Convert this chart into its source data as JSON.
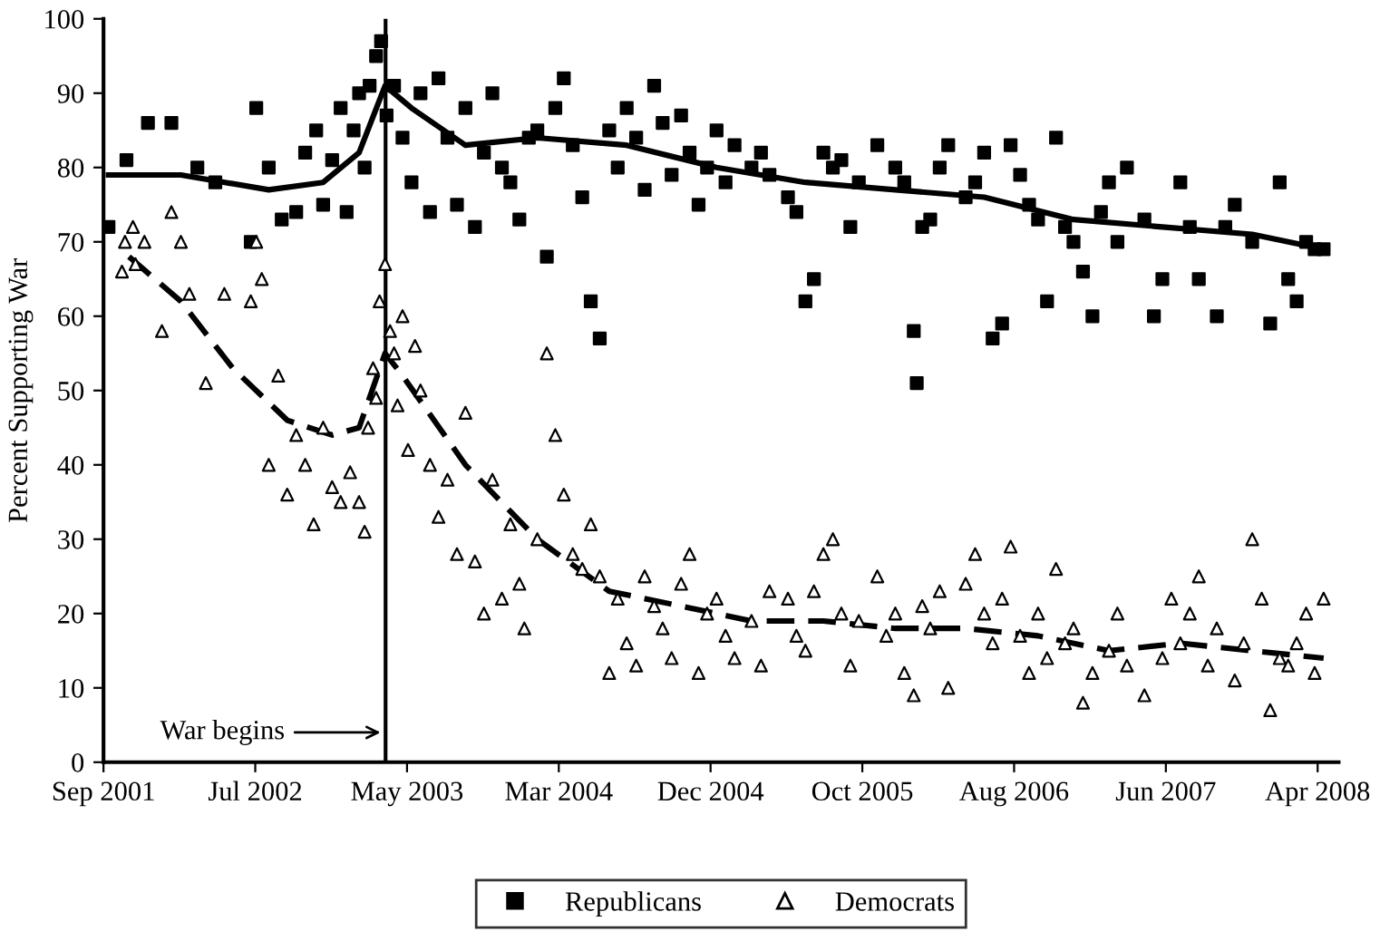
{
  "chart_data": {
    "type": "scatter",
    "ylabel": "Percent Supporting War",
    "xlim": [
      "2001-09-01",
      "2008-06-10"
    ],
    "ylim": [
      0,
      100
    ],
    "yticks": [
      0,
      10,
      20,
      30,
      40,
      50,
      60,
      70,
      80,
      90,
      100
    ],
    "xticks": [
      {
        "value": "2001-09-01",
        "label": "Sep 2001"
      },
      {
        "value": "2002-07-02",
        "label": "Jul 2002"
      },
      {
        "value": "2003-05-02",
        "label": "May 2003"
      },
      {
        "value": "2004-03-01",
        "label": "Mar 2004"
      },
      {
        "value": "2004-12-30",
        "label": "Dec 2004"
      },
      {
        "value": "2005-10-30",
        "label": "Oct 2005"
      },
      {
        "value": "2006-08-30",
        "label": "Aug 2006"
      },
      {
        "value": "2007-06-30",
        "label": "Jun 2007"
      },
      {
        "value": "2008-04-29",
        "label": "Apr 2008"
      }
    ],
    "grid": false,
    "legend": "bottom",
    "ref_lines": [
      {
        "axis": "x",
        "value": "2003-03-20",
        "label": "War begins",
        "color": "#000000"
      }
    ],
    "series": [
      {
        "name": "Republicans",
        "marker": "square",
        "color": "#000000",
        "x": [
          "2001-09-11",
          "2001-10-17",
          "2001-11-29",
          "2002-01-15",
          "2002-03-08",
          "2002-04-13",
          "2002-06-23",
          "2002-07-04",
          "2002-07-29",
          "2002-08-24",
          "2002-09-22",
          "2002-10-10",
          "2002-11-01",
          "2002-11-15",
          "2002-12-03",
          "2002-12-20",
          "2003-01-01",
          "2003-01-15",
          "2003-01-26",
          "2003-02-06",
          "2003-02-16",
          "2003-03-01",
          "2003-03-11",
          "2003-03-22",
          "2003-04-06",
          "2003-04-23",
          "2003-05-11",
          "2003-05-29",
          "2003-06-17",
          "2003-07-04",
          "2003-07-22",
          "2003-08-10",
          "2003-08-27",
          "2003-09-15",
          "2003-10-03",
          "2003-10-20",
          "2003-11-08",
          "2003-11-25",
          "2003-12-13",
          "2004-01-01",
          "2004-01-18",
          "2004-02-06",
          "2004-02-23",
          "2004-03-11",
          "2004-03-29",
          "2004-04-17",
          "2004-05-04",
          "2004-05-22",
          "2004-06-10",
          "2004-06-27",
          "2004-07-15",
          "2004-08-03",
          "2004-08-20",
          "2004-09-08",
          "2004-09-25",
          "2004-10-13",
          "2004-11-01",
          "2004-11-18",
          "2004-12-06",
          "2004-12-23",
          "2005-01-11",
          "2005-01-29",
          "2005-02-16",
          "2005-03-22",
          "2005-04-10",
          "2005-04-27",
          "2005-06-03",
          "2005-06-20",
          "2005-07-08",
          "2005-07-25",
          "2005-08-13",
          "2005-09-01",
          "2005-09-18",
          "2005-10-06",
          "2005-10-23",
          "2005-11-29",
          "2006-01-04",
          "2006-01-22",
          "2006-02-10",
          "2006-02-16",
          "2006-02-27",
          "2006-03-15",
          "2006-04-03",
          "2006-04-20",
          "2006-05-25",
          "2006-06-13",
          "2006-07-01",
          "2006-07-18",
          "2006-08-06",
          "2006-08-23",
          "2006-09-11",
          "2006-09-29",
          "2006-10-17",
          "2006-11-04",
          "2006-11-22",
          "2006-12-10",
          "2006-12-27",
          "2007-01-15",
          "2007-02-03",
          "2007-02-20",
          "2007-03-08",
          "2007-03-25",
          "2007-04-13",
          "2007-05-18",
          "2007-06-06",
          "2007-06-23",
          "2007-07-29",
          "2007-08-17",
          "2007-09-04",
          "2007-10-10",
          "2007-10-27",
          "2007-11-15",
          "2007-12-20",
          "2008-01-25",
          "2008-02-13",
          "2008-03-01",
          "2008-03-18",
          "2008-04-06",
          "2008-04-23",
          "2008-05-11"
        ],
        "values": [
          72,
          81,
          86,
          86,
          80,
          78,
          70,
          88,
          80,
          73,
          74,
          82,
          85,
          75,
          81,
          88,
          74,
          85,
          90,
          80,
          91,
          95,
          97,
          87,
          91,
          84,
          78,
          90,
          74,
          92,
          84,
          75,
          88,
          72,
          82,
          90,
          80,
          78,
          73,
          84,
          85,
          68,
          88,
          92,
          83,
          76,
          62,
          57,
          85,
          80,
          88,
          84,
          77,
          91,
          86,
          79,
          87,
          82,
          75,
          80,
          85,
          78,
          83,
          80,
          82,
          79,
          76,
          74,
          62,
          65,
          82,
          80,
          81,
          72,
          78,
          83,
          80,
          78,
          58,
          51,
          72,
          73,
          80,
          83,
          76,
          78,
          82,
          57,
          59,
          83,
          79,
          75,
          73,
          62,
          84,
          72,
          70,
          66,
          60,
          74,
          78,
          70,
          80,
          73,
          60,
          65,
          78,
          72,
          65,
          60,
          72,
          75,
          70,
          59,
          78,
          65,
          62,
          70,
          69,
          69
        ]
      },
      {
        "name": "Democrats",
        "marker": "triangle",
        "color": "#000000",
        "x": [
          "2001-10-08",
          "2001-10-14",
          "2001-10-30",
          "2001-11-04",
          "2001-11-22",
          "2001-12-27",
          "2002-01-15",
          "2002-02-03",
          "2002-02-20",
          "2002-03-25",
          "2002-05-01",
          "2002-06-23",
          "2002-07-04",
          "2002-07-15",
          "2002-07-29",
          "2002-08-17",
          "2002-09-04",
          "2002-09-22",
          "2002-10-10",
          "2002-10-27",
          "2002-11-15",
          "2002-12-03",
          "2002-12-20",
          "2003-01-08",
          "2003-01-26",
          "2003-02-06",
          "2003-02-13",
          "2003-02-23",
          "2003-03-01",
          "2003-03-08",
          "2003-03-19",
          "2003-03-29",
          "2003-04-06",
          "2003-04-13",
          "2003-04-23",
          "2003-05-04",
          "2003-05-18",
          "2003-05-29",
          "2003-06-17",
          "2003-07-04",
          "2003-07-22",
          "2003-08-10",
          "2003-08-27",
          "2003-09-15",
          "2003-10-03",
          "2003-10-20",
          "2003-11-08",
          "2003-11-25",
          "2003-12-13",
          "2003-12-23",
          "2004-01-18",
          "2004-02-06",
          "2004-02-23",
          "2004-03-11",
          "2004-03-29",
          "2004-04-17",
          "2004-05-04",
          "2004-05-22",
          "2004-06-10",
          "2004-06-27",
          "2004-07-15",
          "2004-08-03",
          "2004-08-20",
          "2004-09-08",
          "2004-09-25",
          "2004-10-13",
          "2004-11-01",
          "2004-11-18",
          "2004-12-06",
          "2004-12-23",
          "2005-01-11",
          "2005-01-29",
          "2005-02-16",
          "2005-03-22",
          "2005-04-10",
          "2005-04-27",
          "2005-06-03",
          "2005-06-20",
          "2005-07-08",
          "2005-07-25",
          "2005-08-13",
          "2005-09-01",
          "2005-09-18",
          "2005-10-06",
          "2005-10-23",
          "2005-11-29",
          "2005-12-17",
          "2006-01-04",
          "2006-01-22",
          "2006-02-10",
          "2006-02-27",
          "2006-03-15",
          "2006-04-03",
          "2006-04-20",
          "2006-05-25",
          "2006-06-13",
          "2006-07-01",
          "2006-07-18",
          "2006-08-06",
          "2006-08-23",
          "2006-09-11",
          "2006-09-29",
          "2006-10-17",
          "2006-11-04",
          "2006-11-22",
          "2006-12-10",
          "2006-12-27",
          "2007-01-15",
          "2007-02-03",
          "2007-03-08",
          "2007-03-25",
          "2007-04-13",
          "2007-05-18",
          "2007-06-23",
          "2007-07-11",
          "2007-07-29",
          "2007-08-17",
          "2007-09-04",
          "2007-09-22",
          "2007-10-10",
          "2007-11-15",
          "2007-12-03",
          "2007-12-20",
          "2008-01-08",
          "2008-01-25",
          "2008-02-13",
          "2008-03-01",
          "2008-03-18",
          "2008-04-06",
          "2008-04-23",
          "2008-05-11"
        ],
        "values": [
          66,
          70,
          72,
          67,
          70,
          58,
          74,
          70,
          63,
          51,
          63,
          62,
          70,
          65,
          40,
          52,
          36,
          44,
          40,
          32,
          45,
          37,
          35,
          39,
          35,
          31,
          45,
          53,
          49,
          62,
          67,
          58,
          55,
          48,
          60,
          42,
          56,
          50,
          40,
          33,
          38,
          28,
          47,
          27,
          20,
          38,
          22,
          32,
          24,
          18,
          30,
          55,
          44,
          36,
          28,
          26,
          32,
          25,
          12,
          22,
          16,
          13,
          25,
          21,
          18,
          14,
          24,
          28,
          12,
          20,
          22,
          17,
          14,
          19,
          13,
          23,
          22,
          17,
          15,
          23,
          28,
          30,
          20,
          13,
          19,
          25,
          17,
          20,
          12,
          9,
          21,
          18,
          23,
          10,
          24,
          28,
          20,
          16,
          22,
          29,
          17,
          12,
          20,
          14,
          26,
          16,
          18,
          8,
          12,
          15,
          20,
          13,
          9,
          14,
          22,
          16,
          20,
          25,
          13,
          18,
          11,
          16,
          30,
          22,
          7,
          14,
          13,
          16,
          20,
          12,
          22
        ]
      },
      {
        "type": "line",
        "line_style": "solid",
        "color": "#000000",
        "x": [
          "2001-09-11",
          "2002-02-03",
          "2002-07-29",
          "2002-11-15",
          "2003-01-26",
          "2003-03-19",
          "2003-05-11",
          "2003-08-27",
          "2004-01-18",
          "2004-07-15",
          "2005-01-11",
          "2005-07-08",
          "2006-01-04",
          "2006-07-01",
          "2006-12-27",
          "2007-06-23",
          "2007-12-20",
          "2008-05-11"
        ],
        "values": [
          79,
          79,
          77,
          78,
          82,
          91,
          88,
          83,
          84,
          83,
          80,
          78,
          77,
          76,
          73,
          72,
          71,
          69
        ]
      },
      {
        "type": "line",
        "line_style": "dashed",
        "color": "#000000",
        "x": [
          "2001-10-22",
          "2002-02-03",
          "2002-05-18",
          "2002-09-04",
          "2002-12-03",
          "2003-01-26",
          "2003-03-19",
          "2003-04-23",
          "2003-08-27",
          "2004-01-18",
          "2004-06-10",
          "2004-11-01",
          "2005-03-22",
          "2005-08-13",
          "2006-01-04",
          "2006-05-25",
          "2006-10-17",
          "2007-03-08",
          "2007-07-29",
          "2007-12-20",
          "2008-05-11"
        ],
        "values": [
          68,
          62,
          53,
          46,
          44,
          45,
          55,
          52,
          40,
          30,
          23,
          21,
          19,
          19,
          18,
          18,
          17,
          15,
          16,
          15,
          14
        ]
      }
    ]
  }
}
